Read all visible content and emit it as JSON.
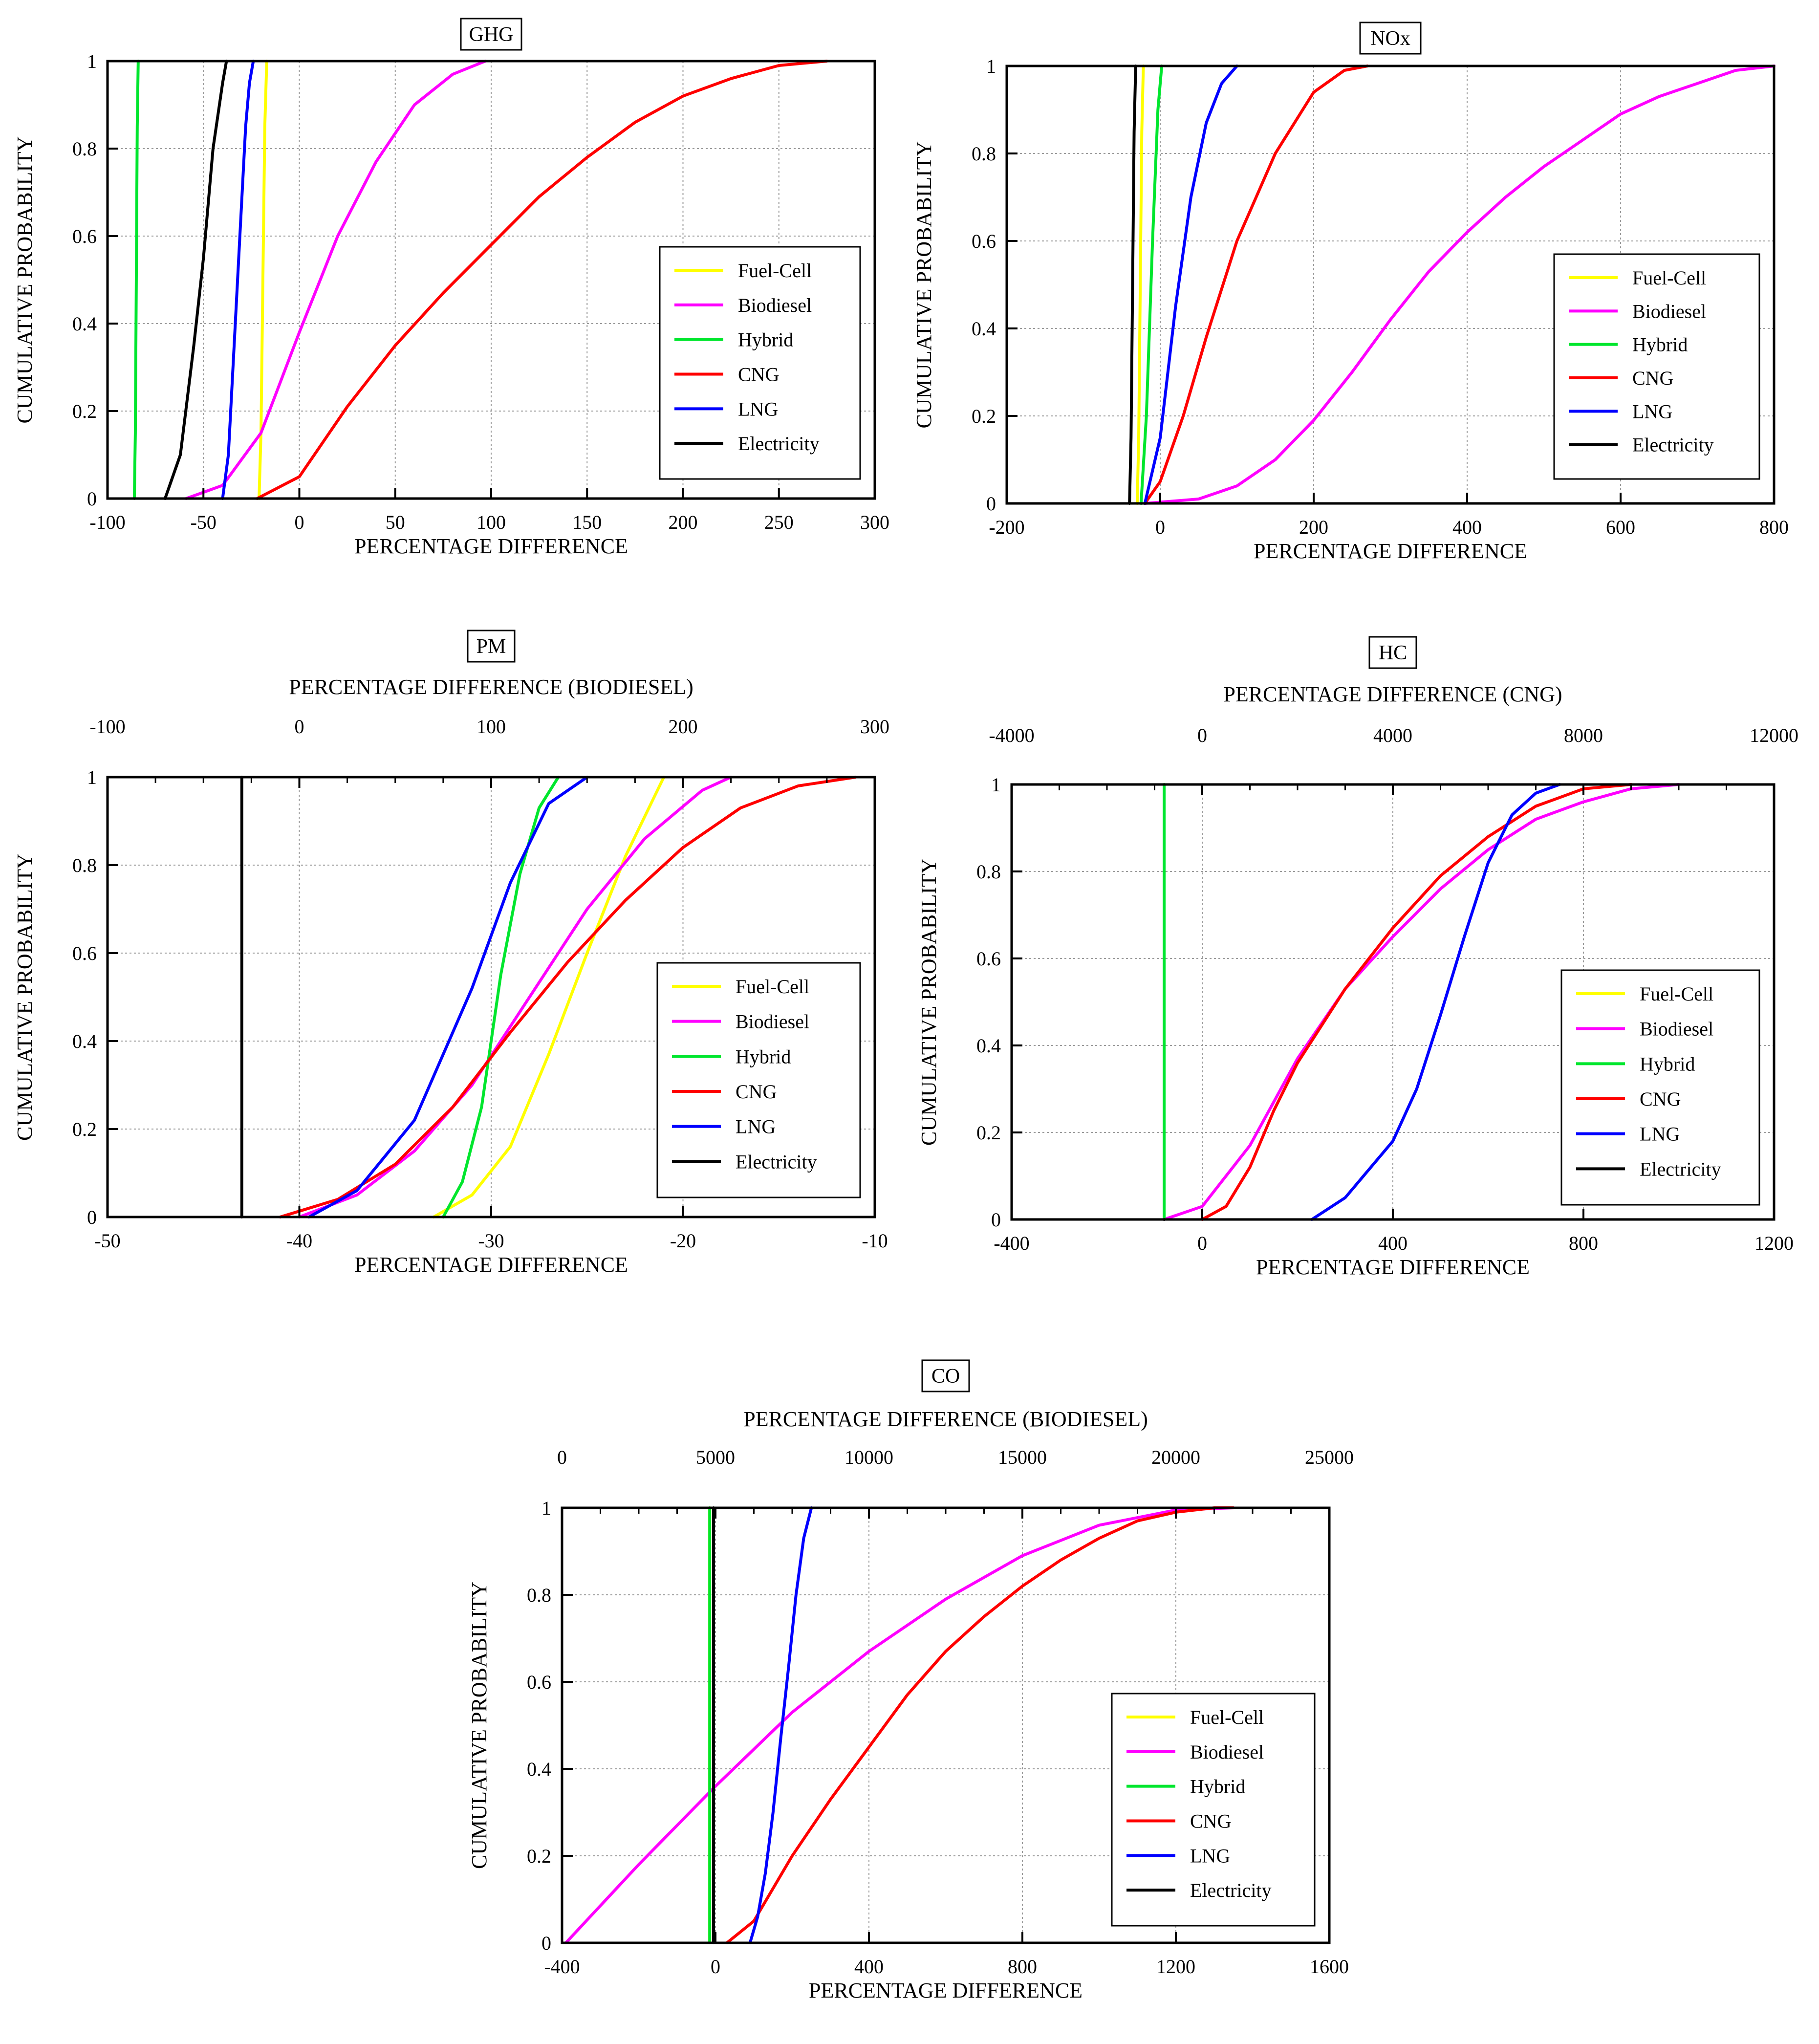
{
  "legend_order": [
    "Fuel-Cell",
    "Biodiesel",
    "Hybrid",
    "CNG",
    "LNG",
    "Electricity"
  ],
  "colors": {
    "Fuel-Cell": "#ffff00",
    "Biodiesel": "#ff00ff",
    "Hybrid": "#00e62e",
    "CNG": "#ff0000",
    "LNG": "#0000ff",
    "Electricity": "#000000"
  },
  "chart_data": [
    {
      "type": "line",
      "title": "GHG",
      "xlabel": "PERCENTAGE DIFFERENCE",
      "ylabel": "CUMULATIVE PROBABILITY",
      "xlim": [
        -100,
        300
      ],
      "ylim": [
        0,
        1
      ],
      "xticks": [
        -100,
        -50,
        0,
        50,
        100,
        150,
        200,
        250,
        300
      ],
      "yticks": [
        0,
        0.2,
        0.4,
        0.6,
        0.8,
        1
      ],
      "grid": true,
      "legend": "bottom-right",
      "series": [
        {
          "name": "Fuel-Cell",
          "x": [
            -21,
            -20,
            -19,
            -18,
            -17
          ],
          "y": [
            0,
            0.15,
            0.5,
            0.85,
            1
          ]
        },
        {
          "name": "Biodiesel",
          "x": [
            -59,
            -40,
            -20,
            0,
            20,
            40,
            60,
            80,
            97
          ],
          "y": [
            0,
            0.03,
            0.15,
            0.38,
            0.6,
            0.77,
            0.9,
            0.97,
            1
          ]
        },
        {
          "name": "Hybrid",
          "x": [
            -86,
            -85.5,
            -85,
            -84.5,
            -84
          ],
          "y": [
            0,
            0.15,
            0.5,
            0.85,
            1
          ]
        },
        {
          "name": "CNG",
          "x": [
            -22,
            0,
            25,
            50,
            75,
            100,
            125,
            150,
            175,
            200,
            225,
            250,
            275
          ],
          "y": [
            0,
            0.05,
            0.21,
            0.35,
            0.47,
            0.58,
            0.69,
            0.78,
            0.86,
            0.92,
            0.96,
            0.99,
            1
          ]
        },
        {
          "name": "LNG",
          "x": [
            -40,
            -37,
            -34,
            -31,
            -28,
            -26,
            -24
          ],
          "y": [
            0,
            0.1,
            0.35,
            0.6,
            0.85,
            0.95,
            1
          ]
        },
        {
          "name": "Electricity",
          "x": [
            -70,
            -62,
            -55,
            -50,
            -45,
            -40,
            -38
          ],
          "y": [
            0,
            0.1,
            0.35,
            0.55,
            0.8,
            0.95,
            1
          ]
        }
      ]
    },
    {
      "type": "line",
      "title": "NOx",
      "xlabel": "PERCENTAGE DIFFERENCE",
      "ylabel": "CUMULATIVE PROBABILITY",
      "xlim": [
        -200,
        800
      ],
      "ylim": [
        0,
        1
      ],
      "xticks": [
        -200,
        0,
        200,
        400,
        600,
        800
      ],
      "yticks": [
        0,
        0.2,
        0.4,
        0.6,
        0.8,
        1
      ],
      "grid": true,
      "legend": "bottom-right",
      "series": [
        {
          "name": "Fuel-Cell",
          "x": [
            -30,
            -28,
            -26,
            -24,
            -22
          ],
          "y": [
            0,
            0.15,
            0.5,
            0.85,
            1
          ]
        },
        {
          "name": "Biodiesel",
          "x": [
            -20,
            50,
            100,
            150,
            200,
            250,
            300,
            350,
            400,
            450,
            500,
            550,
            600,
            650,
            700,
            750,
            800
          ],
          "y": [
            0,
            0.01,
            0.04,
            0.1,
            0.19,
            0.3,
            0.42,
            0.53,
            0.62,
            0.7,
            0.77,
            0.83,
            0.89,
            0.93,
            0.96,
            0.99,
            1
          ]
        },
        {
          "name": "Hybrid",
          "x": [
            -25,
            -18,
            -10,
            -3,
            2
          ],
          "y": [
            0,
            0.2,
            0.6,
            0.9,
            1
          ]
        },
        {
          "name": "CNG",
          "x": [
            -20,
            0,
            30,
            60,
            100,
            150,
            200,
            240,
            270
          ],
          "y": [
            0,
            0.05,
            0.2,
            0.38,
            0.6,
            0.8,
            0.94,
            0.99,
            1
          ]
        },
        {
          "name": "LNG",
          "x": [
            -20,
            0,
            20,
            40,
            60,
            80,
            100
          ],
          "y": [
            0,
            0.15,
            0.45,
            0.7,
            0.87,
            0.96,
            1
          ]
        },
        {
          "name": "Electricity",
          "x": [
            -40,
            -38,
            -36,
            -34,
            -32
          ],
          "y": [
            0,
            0.15,
            0.5,
            0.85,
            1
          ]
        }
      ]
    },
    {
      "type": "line",
      "title": "PM",
      "xlabel": "PERCENTAGE DIFFERENCE",
      "x2label": "PERCENTAGE DIFFERENCE (BIODIESEL)",
      "ylabel": "CUMULATIVE PROBABILITY",
      "xlim": [
        -50,
        -10
      ],
      "x2lim": [
        -100,
        300
      ],
      "ylim": [
        0,
        1
      ],
      "xticks": [
        -50,
        -40,
        -30,
        -20,
        -10
      ],
      "x2ticks": [
        -100,
        0,
        100,
        200,
        300
      ],
      "yticks": [
        0,
        0.2,
        0.4,
        0.6,
        0.8,
        1
      ],
      "grid": true,
      "legend": "bottom-right",
      "series": [
        {
          "name": "Fuel-Cell",
          "x": [
            -33,
            -31,
            -29,
            -27,
            -25,
            -23,
            -21
          ],
          "y": [
            0,
            0.05,
            0.16,
            0.37,
            0.6,
            0.82,
            1
          ]
        },
        {
          "name": "Biodiesel",
          "x": [
            -40,
            -37,
            -34,
            -31,
            -28,
            -25,
            -22,
            -19,
            -17.5
          ],
          "y": [
            0,
            0.05,
            0.15,
            0.3,
            0.5,
            0.7,
            0.86,
            0.97,
            1
          ]
        },
        {
          "name": "Hybrid",
          "x": [
            -32.5,
            -31.5,
            -30.5,
            -30,
            -29.5,
            -28.5,
            -27.5,
            -26.5
          ],
          "y": [
            0,
            0.08,
            0.25,
            0.4,
            0.55,
            0.78,
            0.93,
            1
          ]
        },
        {
          "name": "CNG",
          "x": [
            -41,
            -38,
            -35,
            -32,
            -29,
            -26,
            -23,
            -20,
            -17,
            -14,
            -11
          ],
          "y": [
            0,
            0.04,
            0.12,
            0.25,
            0.42,
            0.58,
            0.72,
            0.84,
            0.93,
            0.98,
            1
          ]
        },
        {
          "name": "LNG",
          "x": [
            -39.5,
            -37,
            -34,
            -31,
            -29,
            -27,
            -25
          ],
          "y": [
            0,
            0.06,
            0.22,
            0.52,
            0.76,
            0.94,
            1
          ]
        },
        {
          "name": "Electricity",
          "x": [
            -43,
            -43
          ],
          "y": [
            0,
            1
          ]
        }
      ]
    },
    {
      "type": "line",
      "title": "HC",
      "xlabel": "PERCENTAGE DIFFERENCE",
      "x2label": "PERCENTAGE DIFFERENCE (CNG)",
      "ylabel": "CUMULATIVE PROBABILITY",
      "xlim": [
        -400,
        1200
      ],
      "x2lim": [
        -4000,
        12000
      ],
      "ylim": [
        0,
        1
      ],
      "xticks": [
        -400,
        0,
        400,
        800,
        1200
      ],
      "x2ticks": [
        -4000,
        0,
        4000,
        8000,
        12000
      ],
      "yticks": [
        0,
        0.2,
        0.4,
        0.6,
        0.8,
        1
      ],
      "grid": true,
      "legend": "bottom-right",
      "series": [
        {
          "name": "Fuel-Cell",
          "x": [
            -80,
            -80
          ],
          "y": [
            0,
            1
          ]
        },
        {
          "name": "Biodiesel",
          "x": [
            -80,
            0,
            100,
            200,
            300,
            400,
            500,
            600,
            700,
            800,
            900,
            1000
          ],
          "y": [
            0,
            0.03,
            0.17,
            0.37,
            0.53,
            0.65,
            0.76,
            0.85,
            0.92,
            0.96,
            0.99,
            1
          ]
        },
        {
          "name": "Hybrid",
          "x": [
            -80,
            -80
          ],
          "y": [
            0,
            1
          ]
        },
        {
          "name": "CNG",
          "x": [
            0,
            50,
            100,
            150,
            200,
            300,
            400,
            500,
            600,
            700,
            800,
            900
          ],
          "y": [
            0,
            0.03,
            0.12,
            0.25,
            0.36,
            0.53,
            0.67,
            0.79,
            0.88,
            0.95,
            0.99,
            1
          ]
        },
        {
          "name": "LNG",
          "x": [
            230,
            300,
            400,
            450,
            500,
            550,
            600,
            650,
            700,
            750
          ],
          "y": [
            0,
            0.05,
            0.18,
            0.3,
            0.47,
            0.65,
            0.82,
            0.93,
            0.98,
            1
          ]
        },
        {
          "name": "Electricity",
          "x": [
            -80,
            -80
          ],
          "y": [
            0,
            0
          ]
        }
      ]
    },
    {
      "type": "line",
      "title": "CO",
      "xlabel": "PERCENTAGE DIFFERENCE",
      "x2label": "PERCENTAGE DIFFERENCE (BIODIESEL)",
      "ylabel": "CUMULATIVE PROBABILITY",
      "xlim": [
        -400,
        1600
      ],
      "x2lim": [
        0,
        25000
      ],
      "ylim": [
        0,
        1
      ],
      "xticks": [
        -400,
        0,
        400,
        800,
        1200,
        1600
      ],
      "x2ticks": [
        0,
        5000,
        10000,
        15000,
        20000,
        25000
      ],
      "yticks": [
        0,
        0.2,
        0.4,
        0.6,
        0.8,
        1
      ],
      "grid": true,
      "legend": "bottom-right",
      "series": [
        {
          "name": "Fuel-Cell",
          "x": [
            -15,
            -15
          ],
          "y": [
            0,
            1
          ]
        },
        {
          "name": "Biodiesel",
          "x": [
            -390,
            -200,
            0,
            200,
            400,
            600,
            800,
            1000,
            1200,
            1350
          ],
          "y": [
            0,
            0.18,
            0.36,
            0.53,
            0.67,
            0.79,
            0.89,
            0.96,
            0.995,
            1
          ]
        },
        {
          "name": "Hybrid",
          "x": [
            -15,
            -15
          ],
          "y": [
            0,
            1
          ]
        },
        {
          "name": "CNG",
          "x": [
            30,
            100,
            200,
            300,
            400,
            500,
            600,
            700,
            800,
            900,
            1000,
            1100,
            1200,
            1300,
            1350
          ],
          "y": [
            0,
            0.05,
            0.2,
            0.33,
            0.45,
            0.57,
            0.67,
            0.75,
            0.82,
            0.88,
            0.93,
            0.97,
            0.99,
            1,
            1
          ]
        },
        {
          "name": "LNG",
          "x": [
            90,
            110,
            130,
            150,
            170,
            190,
            210,
            230,
            250
          ],
          "y": [
            0,
            0.06,
            0.16,
            0.3,
            0.47,
            0.63,
            0.8,
            0.93,
            1
          ]
        },
        {
          "name": "Electricity",
          "x": [
            -5,
            -5
          ],
          "y": [
            0,
            1
          ]
        }
      ]
    }
  ]
}
